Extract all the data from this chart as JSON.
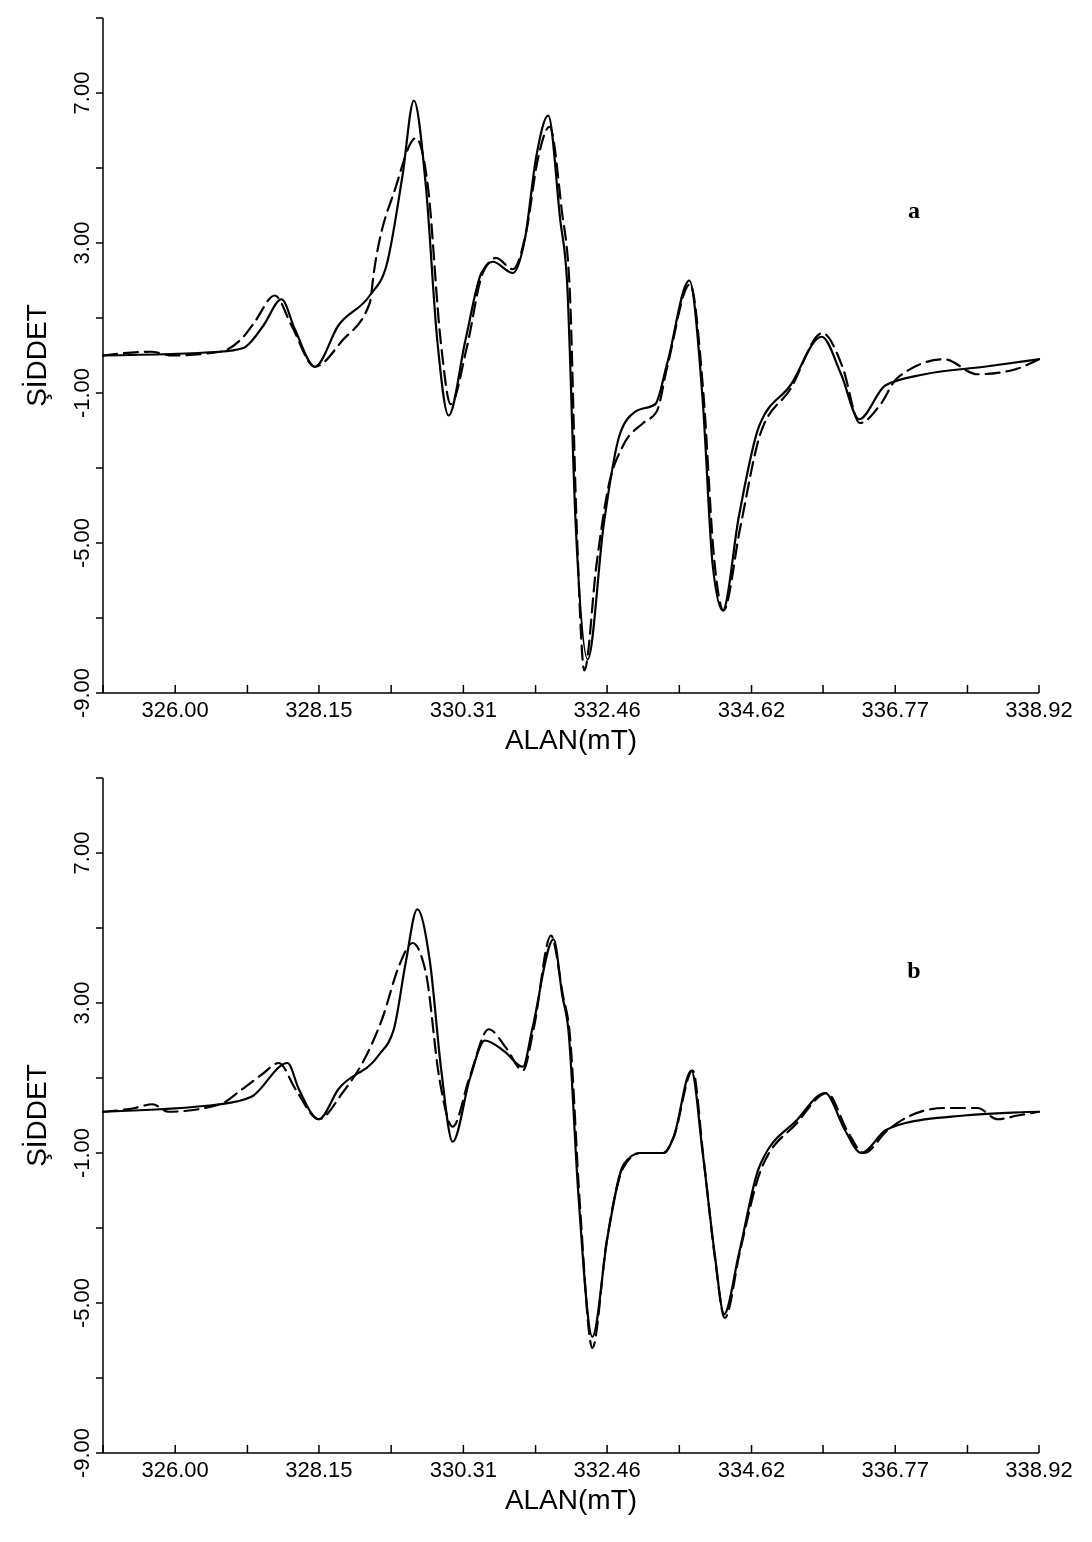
{
  "chart_data": [
    {
      "type": "line",
      "xlabel": "ALAN(mT)",
      "ylabel": "ŞİDDET",
      "annotations": [
        "a"
      ],
      "xlim": [
        324.92,
        338.92
      ],
      "ylim": [
        -9,
        9
      ],
      "xticks": [
        {
          "value": 324.92,
          "label": null
        },
        {
          "value": 326,
          "label": "326.00"
        },
        {
          "value": 327.08,
          "label": null
        },
        {
          "value": 328.15,
          "label": "328.15"
        },
        {
          "value": 329.23,
          "label": null
        },
        {
          "value": 330.31,
          "label": "330.31"
        },
        {
          "value": 331.39,
          "label": null
        },
        {
          "value": 332.46,
          "label": "332.46"
        },
        {
          "value": 333.54,
          "label": null
        },
        {
          "value": 334.62,
          "label": "334.62"
        },
        {
          "value": 335.69,
          "label": null
        },
        {
          "value": 336.77,
          "label": "336.77"
        },
        {
          "value": 337.85,
          "label": null
        },
        {
          "value": 338.92,
          "label": "338.92"
        }
      ],
      "yticks": [
        {
          "value": -9,
          "label": "-9.00"
        },
        {
          "value": -7,
          "label": null
        },
        {
          "value": -5,
          "label": "-5.00"
        },
        {
          "value": -3,
          "label": null
        },
        {
          "value": -1,
          "label": "-1.00"
        },
        {
          "value": 1,
          "label": null
        },
        {
          "value": 3,
          "label": "3.00"
        },
        {
          "value": 5,
          "label": null
        },
        {
          "value": 7,
          "label": "7.00"
        },
        {
          "value": 9,
          "label": null
        }
      ],
      "series": [
        {
          "color": "#000000",
          "line_style": "solid",
          "x": [
            324.92,
            326.67,
            327.02,
            327.32,
            327.59,
            327.79,
            328.09,
            328.44,
            328.91,
            329.16,
            329.4,
            329.57,
            329.75,
            329.92,
            330.09,
            330.34,
            330.58,
            330.75,
            331.05,
            331.23,
            331.4,
            331.58,
            331.76,
            331.86,
            331.99,
            332.17,
            332.41,
            332.65,
            332.88,
            333.18,
            333.36,
            333.69,
            333.89,
            334.04,
            334.19,
            334.43,
            334.73,
            335.2,
            335.67,
            335.96,
            336.23,
            336.62,
            337.21,
            338.1,
            338.92
          ],
          "values": [
            0.0,
            0.1,
            0.2,
            0.8,
            1.5,
            0.7,
            -0.3,
            0.8,
            1.6,
            2.4,
            4.8,
            6.8,
            4.5,
            0.4,
            -1.6,
            0.4,
            2.2,
            2.5,
            2.2,
            3.1,
            5.3,
            6.4,
            3.6,
            2.0,
            -4.5,
            -8.1,
            -4.5,
            -2.1,
            -1.5,
            -1.3,
            -0.2,
            2.0,
            -1.2,
            -5.6,
            -6.8,
            -4.3,
            -1.9,
            -0.8,
            0.5,
            -0.5,
            -1.7,
            -0.8,
            -0.5,
            -0.3,
            -0.1
          ]
        },
        {
          "color": "#000000",
          "line_style": "dashed",
          "x": [
            324.92,
            325.64,
            325.95,
            326.67,
            327.02,
            327.19,
            327.49,
            327.74,
            328.09,
            328.5,
            328.91,
            328.97,
            329.3,
            329.6,
            329.78,
            329.97,
            330.12,
            330.36,
            330.6,
            330.8,
            331.05,
            331.25,
            331.42,
            331.6,
            331.78,
            331.9,
            332.0,
            332.12,
            332.3,
            332.48,
            332.7,
            333.0,
            333.2,
            333.36,
            333.7,
            333.9,
            334.06,
            334.2,
            334.45,
            334.75,
            335.2,
            335.68,
            335.98,
            336.24,
            336.55,
            336.8,
            337.5,
            338.0,
            338.5,
            338.92
          ],
          "values": [
            0.0,
            0.1,
            0.0,
            0.1,
            0.5,
            0.9,
            1.6,
            0.8,
            -0.3,
            0.4,
            1.4,
            2.2,
            4.5,
            5.8,
            4.5,
            0.4,
            -1.3,
            0.2,
            2.2,
            2.6,
            2.3,
            3.3,
            5.2,
            6.1,
            3.9,
            1.8,
            -4.3,
            -8.4,
            -5.6,
            -3.5,
            -2.4,
            -1.8,
            -1.5,
            -0.3,
            1.9,
            -1.0,
            -5.4,
            -6.8,
            -4.6,
            -2.1,
            -0.9,
            0.6,
            -0.3,
            -1.8,
            -1.3,
            -0.6,
            -0.1,
            -0.5,
            -0.4,
            -0.1
          ]
        }
      ]
    },
    {
      "type": "line",
      "xlabel": "ALAN(mT)",
      "ylabel": "ŞİDDET",
      "annotations": [
        "b"
      ],
      "xlim": [
        324.92,
        338.92
      ],
      "ylim": [
        -9,
        9
      ],
      "xticks": [
        {
          "value": 324.92,
          "label": null
        },
        {
          "value": 326,
          "label": "326.00"
        },
        {
          "value": 327.08,
          "label": null
        },
        {
          "value": 328.15,
          "label": "328.15"
        },
        {
          "value": 329.23,
          "label": null
        },
        {
          "value": 330.31,
          "label": "330.31"
        },
        {
          "value": 331.39,
          "label": null
        },
        {
          "value": 332.46,
          "label": "332.46"
        },
        {
          "value": 333.54,
          "label": null
        },
        {
          "value": 334.62,
          "label": "334.62"
        },
        {
          "value": 335.69,
          "label": null
        },
        {
          "value": 336.77,
          "label": "336.77"
        },
        {
          "value": 337.85,
          "label": null
        },
        {
          "value": 338.92,
          "label": "338.92"
        }
      ],
      "yticks": [
        {
          "value": -9,
          "label": "-9.00"
        },
        {
          "value": -7,
          "label": null
        },
        {
          "value": -5,
          "label": "-5.00"
        },
        {
          "value": -3,
          "label": null
        },
        {
          "value": -1,
          "label": "-1.00"
        },
        {
          "value": 1,
          "label": null
        },
        {
          "value": 3,
          "label": "3.00"
        },
        {
          "value": 5,
          "label": null
        },
        {
          "value": 7,
          "label": "7.00"
        },
        {
          "value": 9,
          "label": null
        }
      ],
      "series": [
        {
          "color": "#000000",
          "line_style": "solid",
          "x": [
            324.92,
            326.67,
            327.14,
            327.68,
            327.85,
            328.15,
            328.44,
            329.04,
            329.27,
            329.45,
            329.62,
            329.81,
            329.98,
            330.15,
            330.41,
            330.63,
            330.93,
            331.2,
            331.34,
            331.66,
            331.79,
            331.88,
            332.03,
            332.24,
            332.47,
            332.71,
            332.95,
            333.31,
            333.45,
            333.72,
            333.89,
            334.07,
            334.21,
            334.43,
            334.73,
            335.31,
            335.72,
            336.02,
            336.26,
            336.62,
            336.92,
            337.8,
            338.92
          ],
          "values": [
            0.1,
            0.3,
            0.5,
            1.4,
            0.7,
            -0.1,
            0.7,
            1.6,
            2.3,
            4.1,
            5.5,
            4.1,
            1.2,
            -0.7,
            1.0,
            2.0,
            1.7,
            1.3,
            2.3,
            4.7,
            3.2,
            2.3,
            -2.1,
            -5.9,
            -3.2,
            -1.3,
            -1.0,
            -1.0,
            -0.6,
            1.2,
            -1.0,
            -3.7,
            -5.3,
            -3.7,
            -1.4,
            -0.1,
            0.6,
            -0.4,
            -1.0,
            -0.4,
            -0.2,
            0.0,
            0.1
          ]
        },
        {
          "color": "#000000",
          "line_style": "dashed",
          "x": [
            324.92,
            325.4,
            325.66,
            325.9,
            326.67,
            327.0,
            327.3,
            327.55,
            327.8,
            328.15,
            328.5,
            328.8,
            329.1,
            329.35,
            329.55,
            329.75,
            329.95,
            330.15,
            330.4,
            330.69,
            330.95,
            331.2,
            331.36,
            331.62,
            331.8,
            331.9,
            332.05,
            332.24,
            332.45,
            332.7,
            332.95,
            333.3,
            333.45,
            333.74,
            333.9,
            334.08,
            334.22,
            334.45,
            334.75,
            335.3,
            335.75,
            336.05,
            336.3,
            336.65,
            337.0,
            337.5,
            338.0,
            338.3,
            338.6,
            338.92
          ],
          "values": [
            0.1,
            0.2,
            0.3,
            0.1,
            0.3,
            0.7,
            1.1,
            1.4,
            0.7,
            -0.1,
            0.6,
            1.4,
            2.6,
            4.0,
            4.6,
            3.8,
            1.0,
            -0.3,
            1.0,
            2.3,
            1.8,
            1.2,
            2.3,
            4.8,
            3.2,
            2.2,
            -2.3,
            -6.2,
            -3.4,
            -1.4,
            -1.0,
            -1.0,
            -0.6,
            1.2,
            -1.1,
            -3.9,
            -5.4,
            -3.6,
            -1.5,
            -0.2,
            0.6,
            -0.4,
            -1.0,
            -0.4,
            0.0,
            0.2,
            0.2,
            -0.1,
            0.0,
            0.1
          ]
        }
      ]
    }
  ]
}
